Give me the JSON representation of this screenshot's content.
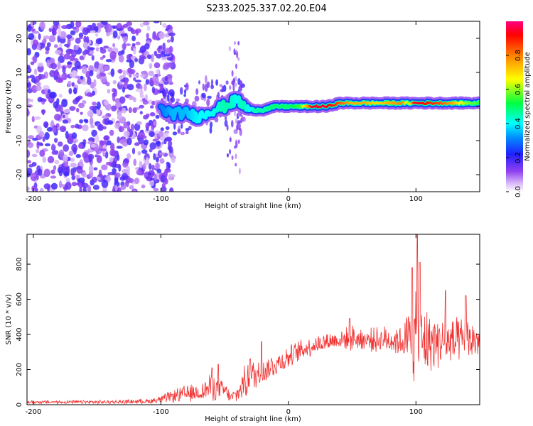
{
  "title": "S233.2025.337.02.20.E04",
  "chart_data": [
    {
      "type": "heatmap",
      "xlabel": "Height of straight line (km)",
      "ylabel": "Frequency (Hz)",
      "xlim": [
        -205,
        150
      ],
      "ylim": [
        -25,
        25
      ],
      "xticks": [
        -200,
        -100,
        0,
        100
      ],
      "yticks": [
        -20,
        -10,
        0,
        10,
        20
      ],
      "colorbar": {
        "label": "Normalized spectral amplitude",
        "range": [
          0,
          1
        ],
        "ticks": [
          0.0,
          0.2,
          0.4,
          0.6,
          0.8
        ],
        "colors": [
          "#ffffff",
          "#b46cf0",
          "#7000e0",
          "#2020ff",
          "#00ffff",
          "#00ff40",
          "#ffff00",
          "#ff8000",
          "#ff0000",
          "#ff0080"
        ]
      },
      "ridge": {
        "x": [
          -100,
          -90,
          -80,
          -70,
          -60,
          -50,
          -45,
          -40,
          -35,
          -30,
          -25,
          -20,
          -10,
          0,
          10,
          20,
          30,
          40,
          50,
          60,
          70,
          80,
          90,
          95,
          100,
          110,
          120,
          130,
          140,
          150
        ],
        "freq": [
          -1,
          -2,
          -2,
          -3,
          -1,
          0,
          1,
          2,
          0,
          -1,
          -1,
          -1,
          0,
          0,
          0,
          0,
          0,
          1,
          1,
          1,
          1,
          1,
          1,
          1,
          1,
          1,
          1,
          1,
          1,
          1
        ],
        "amplitude": [
          0.3,
          0.35,
          0.35,
          0.4,
          0.4,
          0.45,
          0.45,
          0.4,
          0.45,
          0.4,
          0.45,
          0.45,
          0.5,
          0.5,
          0.55,
          0.95,
          0.95,
          0.85,
          0.75,
          0.75,
          0.7,
          0.75,
          0.8,
          0.6,
          0.95,
          0.9,
          0.85,
          0.75,
          0.6,
          0.55
        ]
      },
      "noise_region_x": [
        -205,
        -100
      ]
    },
    {
      "type": "line",
      "xlabel": "Height of straight line (km)",
      "ylabel": "SNR (10 * v/v)",
      "xlim": [
        -205,
        150
      ],
      "ylim": [
        0,
        970
      ],
      "xticks": [
        -200,
        -100,
        0,
        100
      ],
      "yticks": [
        0,
        200,
        400,
        600,
        800
      ],
      "series": [
        {
          "color": "#f03030",
          "envelope_x": [
            -205,
            -140,
            -110,
            -100,
            -90,
            -80,
            -70,
            -60,
            -55,
            -50,
            -45,
            -40,
            -35,
            -30,
            -25,
            -20,
            -10,
            0,
            10,
            20,
            30,
            40,
            50,
            60,
            70,
            80,
            90,
            95,
            100,
            105,
            110,
            120,
            130,
            140,
            150
          ],
          "baseline": [
            15,
            15,
            20,
            30,
            50,
            60,
            70,
            100,
            90,
            80,
            40,
            60,
            120,
            150,
            170,
            190,
            230,
            270,
            310,
            340,
            360,
            370,
            380,
            370,
            370,
            370,
            360,
            360,
            360,
            350,
            360,
            360,
            350,
            360,
            370
          ],
          "spread": [
            10,
            12,
            15,
            25,
            40,
            60,
            50,
            90,
            70,
            60,
            30,
            60,
            100,
            120,
            100,
            80,
            80,
            70,
            70,
            60,
            60,
            60,
            80,
            70,
            80,
            90,
            100,
            250,
            300,
            250,
            200,
            150,
            160,
            140,
            110
          ],
          "peaks": [
            {
              "x": -60,
              "y": 210
            },
            {
              "x": -55,
              "y": 230
            },
            {
              "x": -30,
              "y": 260
            },
            {
              "x": -21,
              "y": 360
            },
            {
              "x": 48,
              "y": 490
            },
            {
              "x": 97,
              "y": 780
            },
            {
              "x": 101,
              "y": 970
            },
            {
              "x": 103,
              "y": 810
            },
            {
              "x": 123,
              "y": 650
            },
            {
              "x": 139,
              "y": 620
            }
          ]
        }
      ]
    }
  ]
}
